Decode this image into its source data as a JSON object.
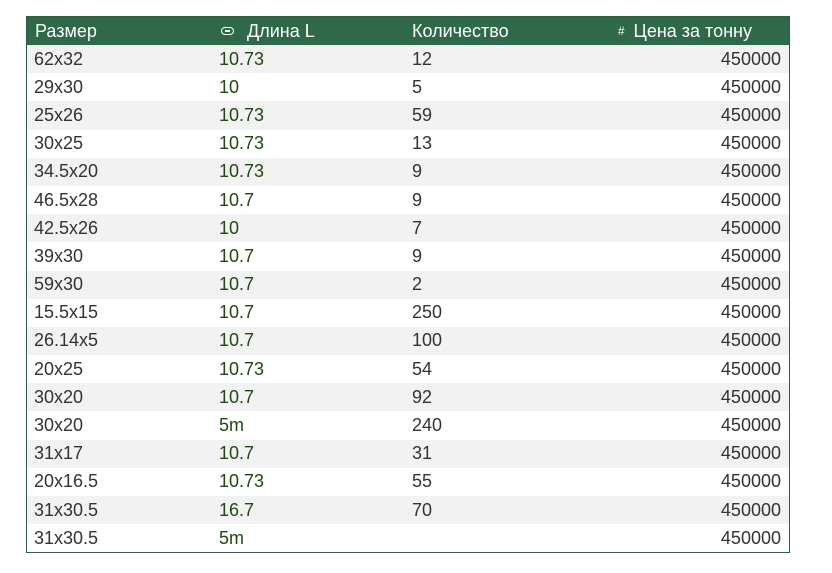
{
  "header": {
    "col1": "Размер",
    "col2": "Длина L",
    "col3": "Количество",
    "col4": "Цена за тонну",
    "col2_icon": "link-icon",
    "col4_icon": "hash-icon",
    "col4_icon_glyph": "#"
  },
  "colors": {
    "header_bg": "#2e6a4a",
    "header_text": "#ffffff",
    "stripe": "#f2f2f2",
    "length_text": "#1f4a0f"
  },
  "rows": [
    {
      "size": "62x32",
      "length": "10.73",
      "qty": "12",
      "price": "450000"
    },
    {
      "size": "29x30",
      "length": "10",
      "qty": "5",
      "price": "450000"
    },
    {
      "size": "25x26",
      "length": "10.73",
      "qty": "59",
      "price": "450000"
    },
    {
      "size": "30x25",
      "length": "10.73",
      "qty": "13",
      "price": "450000"
    },
    {
      "size": "34.5x20",
      "length": "10.73",
      "qty": "9",
      "price": "450000"
    },
    {
      "size": "46.5x28",
      "length": "10.7",
      "qty": "9",
      "price": "450000"
    },
    {
      "size": "42.5x26",
      "length": "10",
      "qty": "7",
      "price": "450000"
    },
    {
      "size": "39x30",
      "length": "10.7",
      "qty": "9",
      "price": "450000"
    },
    {
      "size": "59x30",
      "length": "10.7",
      "qty": "2",
      "price": "450000"
    },
    {
      "size": "15.5x15",
      "length": "10.7",
      "qty": "250",
      "price": "450000"
    },
    {
      "size": "26.14x5",
      "length": "10.7",
      "qty": "100",
      "price": "450000"
    },
    {
      "size": "20x25",
      "length": "10.73",
      "qty": "54",
      "price": "450000"
    },
    {
      "size": "30x20",
      "length": "10.7",
      "qty": "92",
      "price": "450000"
    },
    {
      "size": "30x20",
      "length": "5m",
      "qty": "240",
      "price": "450000"
    },
    {
      "size": "31x17",
      "length": "10.7",
      "qty": "31",
      "price": "450000"
    },
    {
      "size": "20x16.5",
      "length": "10.73",
      "qty": "55",
      "price": "450000"
    },
    {
      "size": "31x30.5",
      "length": "16.7",
      "qty": "70",
      "price": "450000"
    },
    {
      "size": "31x30.5",
      "length": "5m",
      "qty": "",
      "price": "450000"
    }
  ]
}
